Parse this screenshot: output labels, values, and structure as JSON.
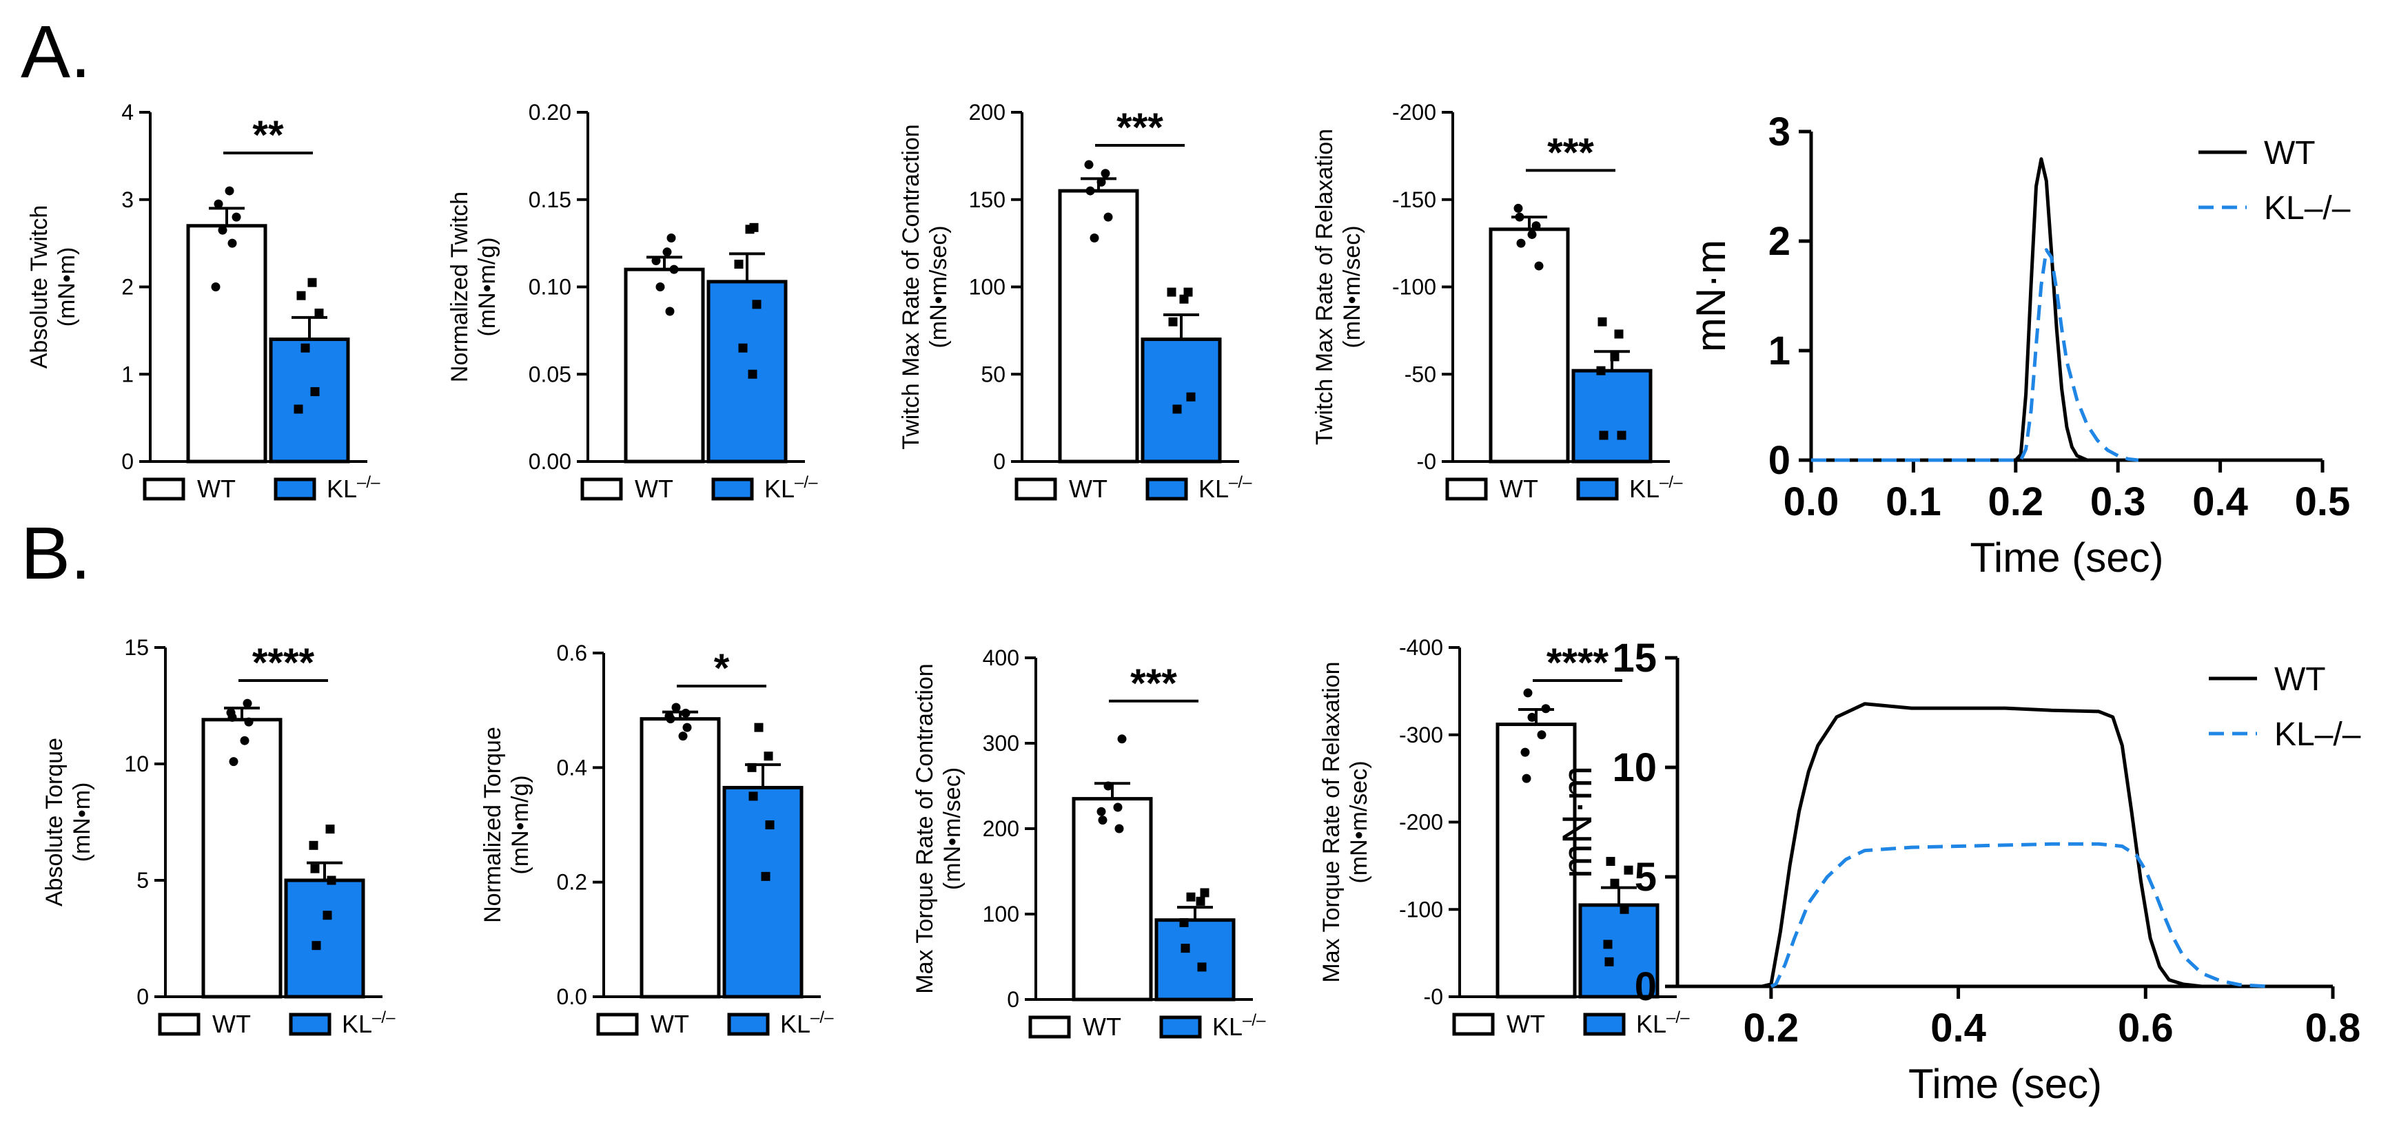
{
  "panel_labels": [
    "A.",
    "B."
  ],
  "colors": {
    "wt_fill": "#ffffff",
    "kl_fill": "#1580ee",
    "ink": "#000000",
    "kl_line": "#1f86e6"
  },
  "legend": {
    "wt": "WT",
    "kl": "KL",
    "kl_sup": "–/–",
    "trace_wt": "WT",
    "trace_kl": "KL–/–"
  },
  "chart_data": [
    {
      "id": "A1",
      "type": "bar",
      "ylabel_lines": [
        "Absolute Twitch",
        "(mN•m)"
      ],
      "ylim": [
        0,
        4
      ],
      "ticks": [
        0,
        1,
        2,
        3,
        4
      ],
      "tick_labels": [
        "0",
        "1",
        "2",
        "3",
        "4"
      ],
      "categories": [
        "WT",
        "KL–/–"
      ],
      "values": [
        2.7,
        1.4
      ],
      "errors": [
        0.2,
        0.25
      ],
      "points": [
        [
          2.0,
          2.5,
          2.65,
          2.8,
          2.95,
          3.1
        ],
        [
          0.6,
          0.8,
          1.3,
          1.7,
          1.9,
          2.05
        ]
      ],
      "significance": "**"
    },
    {
      "id": "A2",
      "type": "bar",
      "ylabel_lines": [
        "Normalized Twitch",
        "(mN•m/g)"
      ],
      "ylim": [
        0,
        0.2
      ],
      "ticks": [
        0,
        0.05,
        0.1,
        0.15,
        0.2
      ],
      "tick_labels": [
        "0.00",
        "0.05",
        "0.10",
        "0.15",
        "0.20"
      ],
      "categories": [
        "WT",
        "KL–/–"
      ],
      "values": [
        0.11,
        0.103
      ],
      "errors": [
        0.007,
        0.016
      ],
      "points": [
        [
          0.086,
          0.1,
          0.11,
          0.115,
          0.12,
          0.128
        ],
        [
          0.05,
          0.065,
          0.09,
          0.113,
          0.133,
          0.134
        ]
      ],
      "significance": ""
    },
    {
      "id": "A3",
      "type": "bar",
      "ylabel_lines": [
        "Twitch Max Rate of Contraction",
        "(mN•m/sec)"
      ],
      "ylim": [
        0,
        200
      ],
      "ticks": [
        0,
        50,
        100,
        150,
        200
      ],
      "tick_labels": [
        "0",
        "50",
        "100",
        "150",
        "200"
      ],
      "categories": [
        "WT",
        "KL–/–"
      ],
      "values": [
        155,
        70
      ],
      "errors": [
        7,
        14
      ],
      "points": [
        [
          128,
          140,
          155,
          160,
          165,
          170
        ],
        [
          30,
          37,
          80,
          93,
          97,
          97
        ]
      ],
      "significance": "***"
    },
    {
      "id": "A4",
      "type": "bar",
      "ylabel_lines": [
        "Twitch Max Rate of Relaxation",
        "(mN•m/sec)"
      ],
      "ylim": [
        0,
        200
      ],
      "ticks": [
        0,
        50,
        100,
        150,
        200
      ],
      "tick_labels": [
        "-0",
        "-50",
        "-100",
        "-150",
        "-200"
      ],
      "categories": [
        "WT",
        "KL–/–"
      ],
      "values": [
        133,
        52
      ],
      "errors": [
        7,
        11
      ],
      "points": [
        [
          112,
          125,
          130,
          135,
          140,
          145
        ],
        [
          15,
          15,
          60,
          73,
          80,
          52
        ]
      ],
      "significance": "***"
    },
    {
      "id": "B1",
      "type": "bar",
      "ylabel_lines": [
        "Absolute Torque",
        "(mN•m)"
      ],
      "ylim": [
        0,
        15
      ],
      "ticks": [
        0,
        5,
        10,
        15
      ],
      "tick_labels": [
        "0",
        "5",
        "10",
        "15"
      ],
      "categories": [
        "WT",
        "KL–/–"
      ],
      "values": [
        11.9,
        5.0
      ],
      "errors": [
        0.5,
        0.75
      ],
      "points": [
        [
          10.1,
          11.0,
          11.8,
          12.0,
          12.2,
          12.6
        ],
        [
          2.2,
          3.5,
          5.0,
          5.5,
          6.5,
          7.2
        ]
      ],
      "significance": "****"
    },
    {
      "id": "B2",
      "type": "bar",
      "ylabel_lines": [
        "Normalized Torque",
        "(mN•m/g)"
      ],
      "ylim": [
        0,
        0.6
      ],
      "ticks": [
        0,
        0.2,
        0.4,
        0.6
      ],
      "tick_labels": [
        "0.0",
        "0.2",
        "0.4",
        "0.6"
      ],
      "categories": [
        "WT",
        "KL–/–"
      ],
      "values": [
        0.485,
        0.365
      ],
      "errors": [
        0.012,
        0.04
      ],
      "points": [
        [
          0.455,
          0.47,
          0.485,
          0.49,
          0.495,
          0.505
        ],
        [
          0.21,
          0.3,
          0.35,
          0.4,
          0.42,
          0.47
        ]
      ],
      "significance": "*"
    },
    {
      "id": "B3",
      "type": "bar",
      "ylabel_lines": [
        "Max Torque Rate of Contraction",
        "(mN•m/sec)"
      ],
      "ylim": [
        0,
        400
      ],
      "ticks": [
        0,
        100,
        200,
        300,
        400
      ],
      "tick_labels": [
        "0",
        "100",
        "200",
        "300",
        "400"
      ],
      "categories": [
        "WT",
        "KL–/–"
      ],
      "values": [
        235,
        93
      ],
      "errors": [
        18,
        15
      ],
      "points": [
        [
          200,
          210,
          220,
          225,
          250,
          305
        ],
        [
          38,
          60,
          90,
          115,
          120,
          125
        ]
      ],
      "significance": "***"
    },
    {
      "id": "B4",
      "type": "bar",
      "ylabel_lines": [
        "Max Torque Rate of Relaxation",
        "(mN•m/sec)"
      ],
      "ylim": [
        0,
        400
      ],
      "ticks": [
        0,
        100,
        200,
        300,
        400
      ],
      "tick_labels": [
        "-0",
        "-100",
        "-200",
        "-300",
        "-400"
      ],
      "categories": [
        "WT",
        "KL–/–"
      ],
      "values": [
        312,
        105
      ],
      "errors": [
        17,
        20
      ],
      "points": [
        [
          250,
          280,
          300,
          320,
          330,
          348
        ],
        [
          40,
          60,
          100,
          130,
          145,
          155
        ]
      ],
      "significance": "****"
    },
    {
      "id": "A5",
      "type": "line",
      "xlabel": "Time (sec)",
      "ylabel": "mN·m",
      "xlim": [
        0,
        0.5
      ],
      "ylim": [
        0,
        3
      ],
      "xticks": [
        0,
        0.1,
        0.2,
        0.3,
        0.4,
        0.5
      ],
      "xtick_labels": [
        "0.0",
        "0.1",
        "0.2",
        "0.3",
        "0.4",
        "0.5"
      ],
      "yticks": [
        0,
        1,
        2,
        3
      ],
      "ytick_labels": [
        "0",
        "1",
        "2",
        "3"
      ],
      "series": [
        {
          "name": "WT",
          "style": "solid",
          "x": [
            0,
            0.2,
            0.205,
            0.21,
            0.215,
            0.22,
            0.225,
            0.23,
            0.235,
            0.24,
            0.245,
            0.25,
            0.255,
            0.26,
            0.27,
            0.5
          ],
          "y": [
            0,
            0,
            0.05,
            0.6,
            1.6,
            2.5,
            2.75,
            2.55,
            1.9,
            1.2,
            0.65,
            0.3,
            0.12,
            0.04,
            0,
            0
          ]
        },
        {
          "name": "KL–/–",
          "style": "dashed",
          "x": [
            0,
            0.205,
            0.21,
            0.215,
            0.22,
            0.225,
            0.23,
            0.235,
            0.24,
            0.245,
            0.25,
            0.26,
            0.27,
            0.28,
            0.29,
            0.3,
            0.31,
            0.32
          ],
          "y": [
            0,
            0,
            0.1,
            0.45,
            1.05,
            1.6,
            1.92,
            1.85,
            1.55,
            1.2,
            0.9,
            0.55,
            0.32,
            0.18,
            0.09,
            0.04,
            0.01,
            0
          ]
        }
      ]
    },
    {
      "id": "B5",
      "type": "line",
      "xlabel": "Time (sec)",
      "ylabel": "mN·m",
      "xlim": [
        0.1,
        0.8
      ],
      "ylim": [
        0,
        15
      ],
      "xticks": [
        0.2,
        0.4,
        0.6,
        0.8
      ],
      "xtick_labels": [
        "0.2",
        "0.4",
        "0.6",
        "0.8"
      ],
      "yticks": [
        0,
        5,
        10,
        15
      ],
      "ytick_labels": [
        "0",
        "5",
        "10",
        "15"
      ],
      "series": [
        {
          "name": "WT",
          "style": "solid",
          "x": [
            0.1,
            0.19,
            0.2,
            0.21,
            0.22,
            0.23,
            0.24,
            0.25,
            0.27,
            0.3,
            0.35,
            0.4,
            0.45,
            0.5,
            0.55,
            0.565,
            0.575,
            0.585,
            0.595,
            0.605,
            0.615,
            0.625,
            0.64,
            0.66,
            0.8
          ],
          "y": [
            0,
            0,
            0.1,
            2.5,
            5.5,
            8.0,
            9.8,
            11.0,
            12.3,
            12.9,
            12.7,
            12.7,
            12.7,
            12.6,
            12.55,
            12.3,
            11.0,
            8.0,
            4.8,
            2.2,
            0.9,
            0.3,
            0.1,
            0,
            0
          ]
        },
        {
          "name": "KL–/–",
          "style": "dashed",
          "x": [
            0.2,
            0.205,
            0.215,
            0.225,
            0.24,
            0.26,
            0.28,
            0.3,
            0.35,
            0.4,
            0.45,
            0.5,
            0.55,
            0.575,
            0.59,
            0.6,
            0.61,
            0.62,
            0.63,
            0.64,
            0.66,
            0.68,
            0.7,
            0.73
          ],
          "y": [
            0,
            0.1,
            1.0,
            2.2,
            3.8,
            5.0,
            5.8,
            6.2,
            6.35,
            6.4,
            6.45,
            6.5,
            6.5,
            6.4,
            6.0,
            5.3,
            4.3,
            3.2,
            2.2,
            1.4,
            0.6,
            0.25,
            0.08,
            0
          ]
        }
      ]
    }
  ]
}
